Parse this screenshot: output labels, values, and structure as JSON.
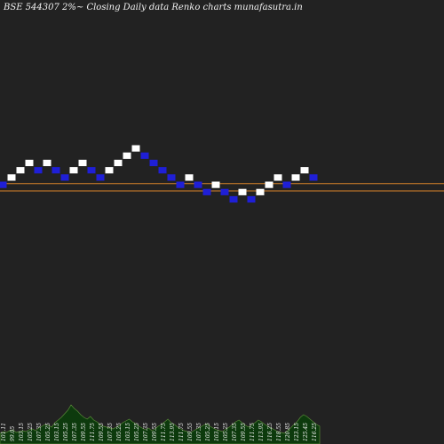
{
  "header": {
    "title": "BSE 544307 2%~  Closing Daily data  Renko  charts munafasutra.in"
  },
  "colors": {
    "background": "#222222",
    "up_brick": "#ffffff",
    "down_brick": "#1f1fd6",
    "brick_stroke": "#222222",
    "level_line": "#d9842a",
    "volume_fill": "#0d3a0d",
    "volume_stroke": "#5a8a3a"
  },
  "chart_data": {
    "type": "renko",
    "brick_directions": [
      "down",
      "up",
      "up",
      "up",
      "down",
      "up",
      "down",
      "down",
      "up",
      "up",
      "down",
      "down",
      "up",
      "up",
      "up",
      "up",
      "down",
      "down",
      "down",
      "down",
      "down",
      "up",
      "down",
      "down",
      "up",
      "down",
      "down",
      "up",
      "down",
      "up",
      "up",
      "up",
      "down",
      "up",
      "up",
      "down"
    ],
    "level_lines": [
      1,
      0
    ],
    "volume_series": {
      "values": [
        12,
        14,
        13,
        15,
        16,
        13,
        14,
        15,
        14,
        16,
        17,
        15,
        18,
        20,
        22,
        21,
        19,
        24,
        27,
        30,
        34,
        38,
        44,
        40,
        37,
        33,
        30,
        28,
        31,
        27,
        25,
        22,
        20,
        19,
        18,
        17,
        19,
        21,
        24,
        26,
        28,
        25,
        23,
        20,
        18,
        16,
        18,
        15,
        17,
        20,
        22,
        25,
        28,
        24,
        22,
        19,
        17,
        15,
        14,
        13,
        15,
        17,
        19,
        21,
        23,
        20,
        18,
        16,
        15,
        14,
        17,
        19,
        22,
        25,
        27,
        24,
        21,
        19,
        22,
        24,
        27,
        25,
        22,
        20,
        18,
        16,
        14,
        13,
        12,
        15,
        18,
        22,
        25,
        30,
        33,
        31,
        28,
        25,
        22,
        20
      ]
    },
    "brick_labels": [
      "101.11",
      "99.05",
      "103.15",
      "105.25",
      "107.35",
      "105.25",
      "103.15",
      "105.25",
      "107.35",
      "109.55",
      "111.75",
      "109.55",
      "107.35",
      "105.25",
      "103.15",
      "105.25",
      "107.35",
      "109.55",
      "111.75",
      "113.95",
      "111.75",
      "109.55",
      "107.35",
      "105.25",
      "103.15",
      "105.25",
      "107.35",
      "109.55",
      "111.75",
      "113.95",
      "116.25",
      "118.55",
      "120.85",
      "123.15",
      "125.45",
      "116.25"
    ]
  }
}
